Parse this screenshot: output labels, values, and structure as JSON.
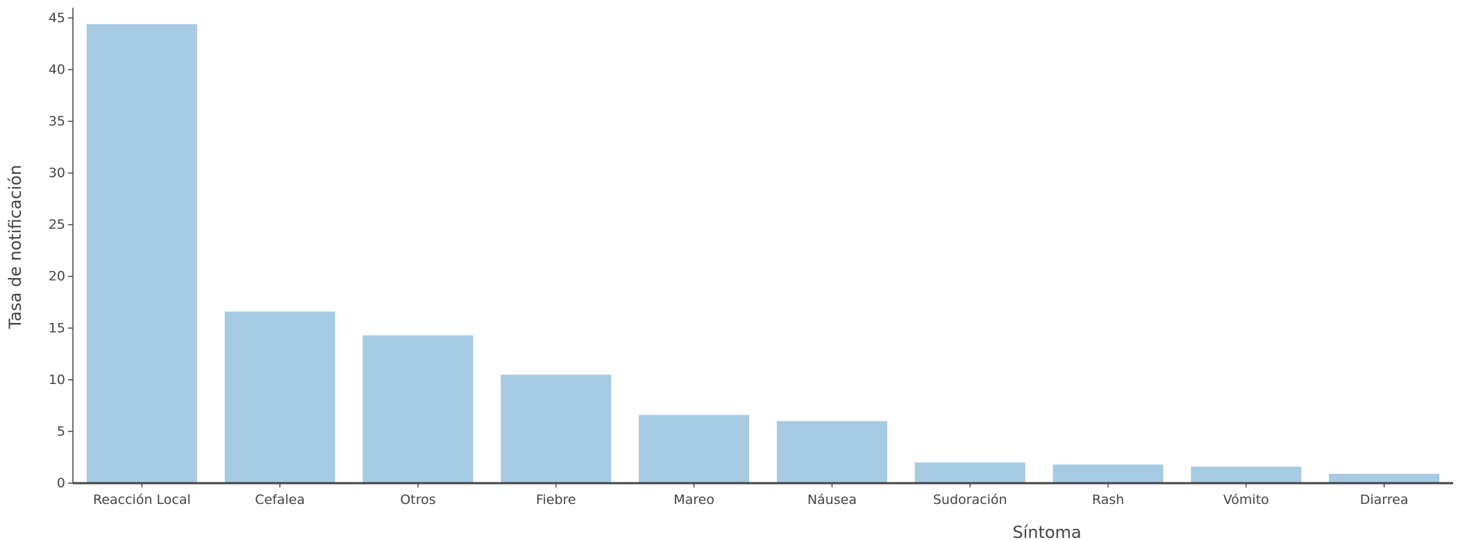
{
  "chart_data": {
    "type": "bar",
    "title": "",
    "xlabel": "Síntoma",
    "ylabel": "Tasa de notificación",
    "categories": [
      "Reacción Local",
      "Cefalea",
      "Otros",
      "Fiebre",
      "Mareo",
      "Náusea",
      "Sudoración",
      "Rash",
      "Vómito",
      "Diarrea"
    ],
    "values": [
      44.4,
      16.6,
      14.3,
      10.5,
      6.6,
      6.0,
      2.0,
      1.8,
      1.6,
      0.9
    ],
    "ylim": [
      0,
      46
    ],
    "yticks": [
      0,
      5,
      10,
      15,
      20,
      25,
      30,
      35,
      40,
      45
    ],
    "grid": false,
    "legend": "none",
    "bar_color": "#a6cbe3",
    "axis_color": "#444444"
  }
}
